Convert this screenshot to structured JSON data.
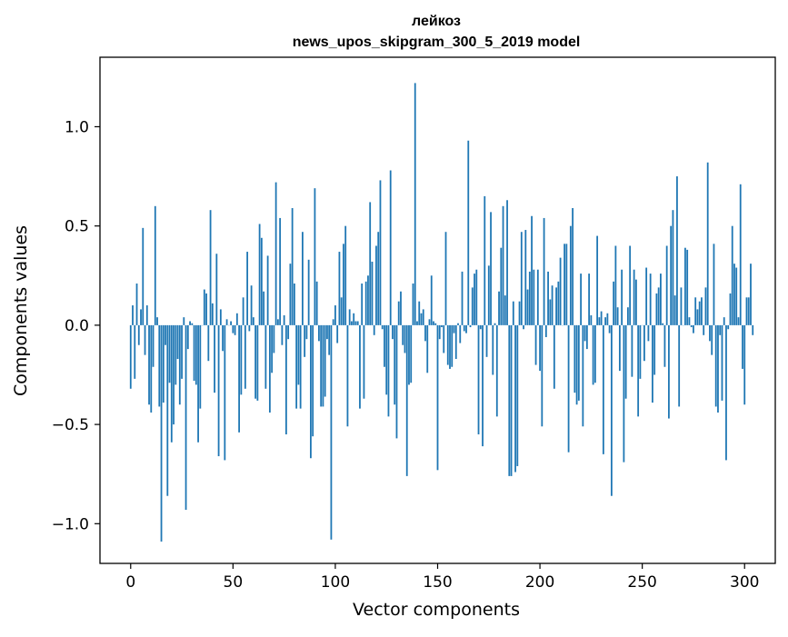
{
  "chart_data": {
    "type": "bar",
    "title": "лейкоз",
    "subtitle": "news_upos_skipgram_300_5_2019 model",
    "xlabel": "Vector components",
    "ylabel": "Components values",
    "xlim": [
      -15,
      315
    ],
    "ylim": [
      -1.2,
      1.35
    ],
    "xticks": [
      {
        "value": 0,
        "label": "0"
      },
      {
        "value": 50,
        "label": "50"
      },
      {
        "value": 100,
        "label": "100"
      },
      {
        "value": 150,
        "label": "150"
      },
      {
        "value": 200,
        "label": "200"
      },
      {
        "value": 250,
        "label": "250"
      },
      {
        "value": 300,
        "label": "300"
      }
    ],
    "yticks": [
      {
        "value": -1.0,
        "label": "−1.0"
      },
      {
        "value": -0.5,
        "label": "−0.5"
      },
      {
        "value": 0.0,
        "label": "0.0"
      },
      {
        "value": 0.5,
        "label": "0.5"
      },
      {
        "value": 1.0,
        "label": "1.0"
      }
    ],
    "grid": false,
    "bar_color": "#1f77b4",
    "series": [
      {
        "values": [
          -0.32,
          0.1,
          -0.27,
          0.21,
          -0.1,
          0.08,
          0.49,
          -0.15,
          0.1,
          -0.4,
          -0.44,
          -0.21,
          0.6,
          0.04,
          -0.41,
          -1.09,
          -0.39,
          -0.1,
          -0.86,
          -0.29,
          -0.59,
          -0.5,
          -0.3,
          -0.17,
          -0.4,
          -0.27,
          0.04,
          -0.93,
          -0.12,
          0.02,
          0.01,
          -0.28,
          -0.3,
          -0.59,
          -0.42,
          0.0,
          0.18,
          0.16,
          -0.18,
          0.58,
          0.11,
          -0.34,
          0.36,
          -0.66,
          0.08,
          -0.13,
          -0.68,
          0.03,
          0.0,
          0.02,
          -0.04,
          -0.05,
          0.06,
          -0.54,
          -0.35,
          0.14,
          -0.32,
          0.37,
          -0.03,
          0.2,
          0.04,
          -0.37,
          -0.38,
          0.51,
          0.44,
          0.17,
          -0.32,
          0.35,
          -0.44,
          -0.24,
          -0.14,
          0.72,
          0.03,
          0.54,
          -0.1,
          0.05,
          -0.55,
          -0.07,
          0.31,
          0.59,
          0.21,
          -0.42,
          -0.3,
          -0.42,
          0.47,
          -0.16,
          -0.07,
          0.33,
          -0.67,
          -0.56,
          0.69,
          0.22,
          -0.08,
          -0.41,
          -0.41,
          -0.36,
          -0.07,
          -0.15,
          -1.08,
          0.03,
          0.1,
          -0.09,
          0.37,
          0.14,
          0.41,
          0.5,
          -0.51,
          0.08,
          0.02,
          0.06,
          0.02,
          0.02,
          -0.42,
          0.21,
          -0.37,
          0.22,
          0.25,
          0.62,
          0.32,
          -0.05,
          0.4,
          0.47,
          0.73,
          -0.02,
          -0.21,
          -0.35,
          -0.46,
          0.78,
          -0.07,
          -0.4,
          -0.57,
          0.12,
          0.17,
          -0.1,
          -0.14,
          -0.76,
          -0.3,
          -0.29,
          0.21,
          1.22,
          0.02,
          0.12,
          0.06,
          0.08,
          -0.08,
          -0.24,
          0.03,
          0.25,
          0.02,
          0.01,
          -0.73,
          -0.07,
          -0.01,
          -0.14,
          0.47,
          -0.2,
          -0.22,
          -0.21,
          -0.04,
          -0.17,
          0.01,
          -0.09,
          0.27,
          -0.03,
          -0.04,
          0.93,
          -0.01,
          0.19,
          0.26,
          0.28,
          -0.55,
          -0.02,
          -0.61,
          0.65,
          -0.16,
          0.3,
          0.57,
          -0.25,
          0.01,
          -0.46,
          0.17,
          0.39,
          0.6,
          0.15,
          0.63,
          -0.76,
          -0.76,
          0.12,
          -0.74,
          -0.71,
          0.12,
          0.47,
          -0.02,
          0.48,
          0.18,
          0.27,
          0.55,
          0.28,
          -0.2,
          0.28,
          -0.23,
          -0.51,
          0.54,
          -0.06,
          0.27,
          0.13,
          0.2,
          -0.32,
          0.19,
          0.22,
          0.34,
          0.0,
          0.41,
          0.41,
          -0.64,
          0.5,
          0.59,
          -0.34,
          -0.4,
          -0.38,
          0.26,
          -0.51,
          -0.08,
          -0.12,
          0.26,
          0.05,
          -0.3,
          -0.29,
          0.45,
          0.04,
          0.07,
          -0.65,
          0.04,
          0.06,
          -0.04,
          -0.86,
          0.22,
          0.4,
          0.09,
          -0.23,
          0.28,
          -0.69,
          -0.37,
          0.09,
          0.4,
          -0.26,
          0.28,
          0.23,
          -0.46,
          -0.27,
          0.0,
          -0.18,
          0.29,
          -0.08,
          0.26,
          -0.39,
          -0.25,
          0.16,
          0.19,
          0.26,
          0.01,
          -0.21,
          0.4,
          -0.47,
          0.5,
          0.58,
          0.15,
          0.75,
          -0.41,
          0.19,
          0.0,
          0.39,
          0.38,
          0.04,
          -0.01,
          -0.04,
          0.14,
          0.08,
          0.12,
          0.14,
          -0.05,
          0.19,
          0.82,
          -0.08,
          -0.15,
          0.41,
          -0.41,
          -0.44,
          -0.05,
          -0.38,
          0.04,
          -0.68,
          -0.02,
          0.16,
          0.5,
          0.31,
          0.29,
          0.04,
          0.71,
          -0.22,
          -0.4,
          0.14,
          0.14,
          0.31,
          -0.05
        ]
      }
    ]
  }
}
